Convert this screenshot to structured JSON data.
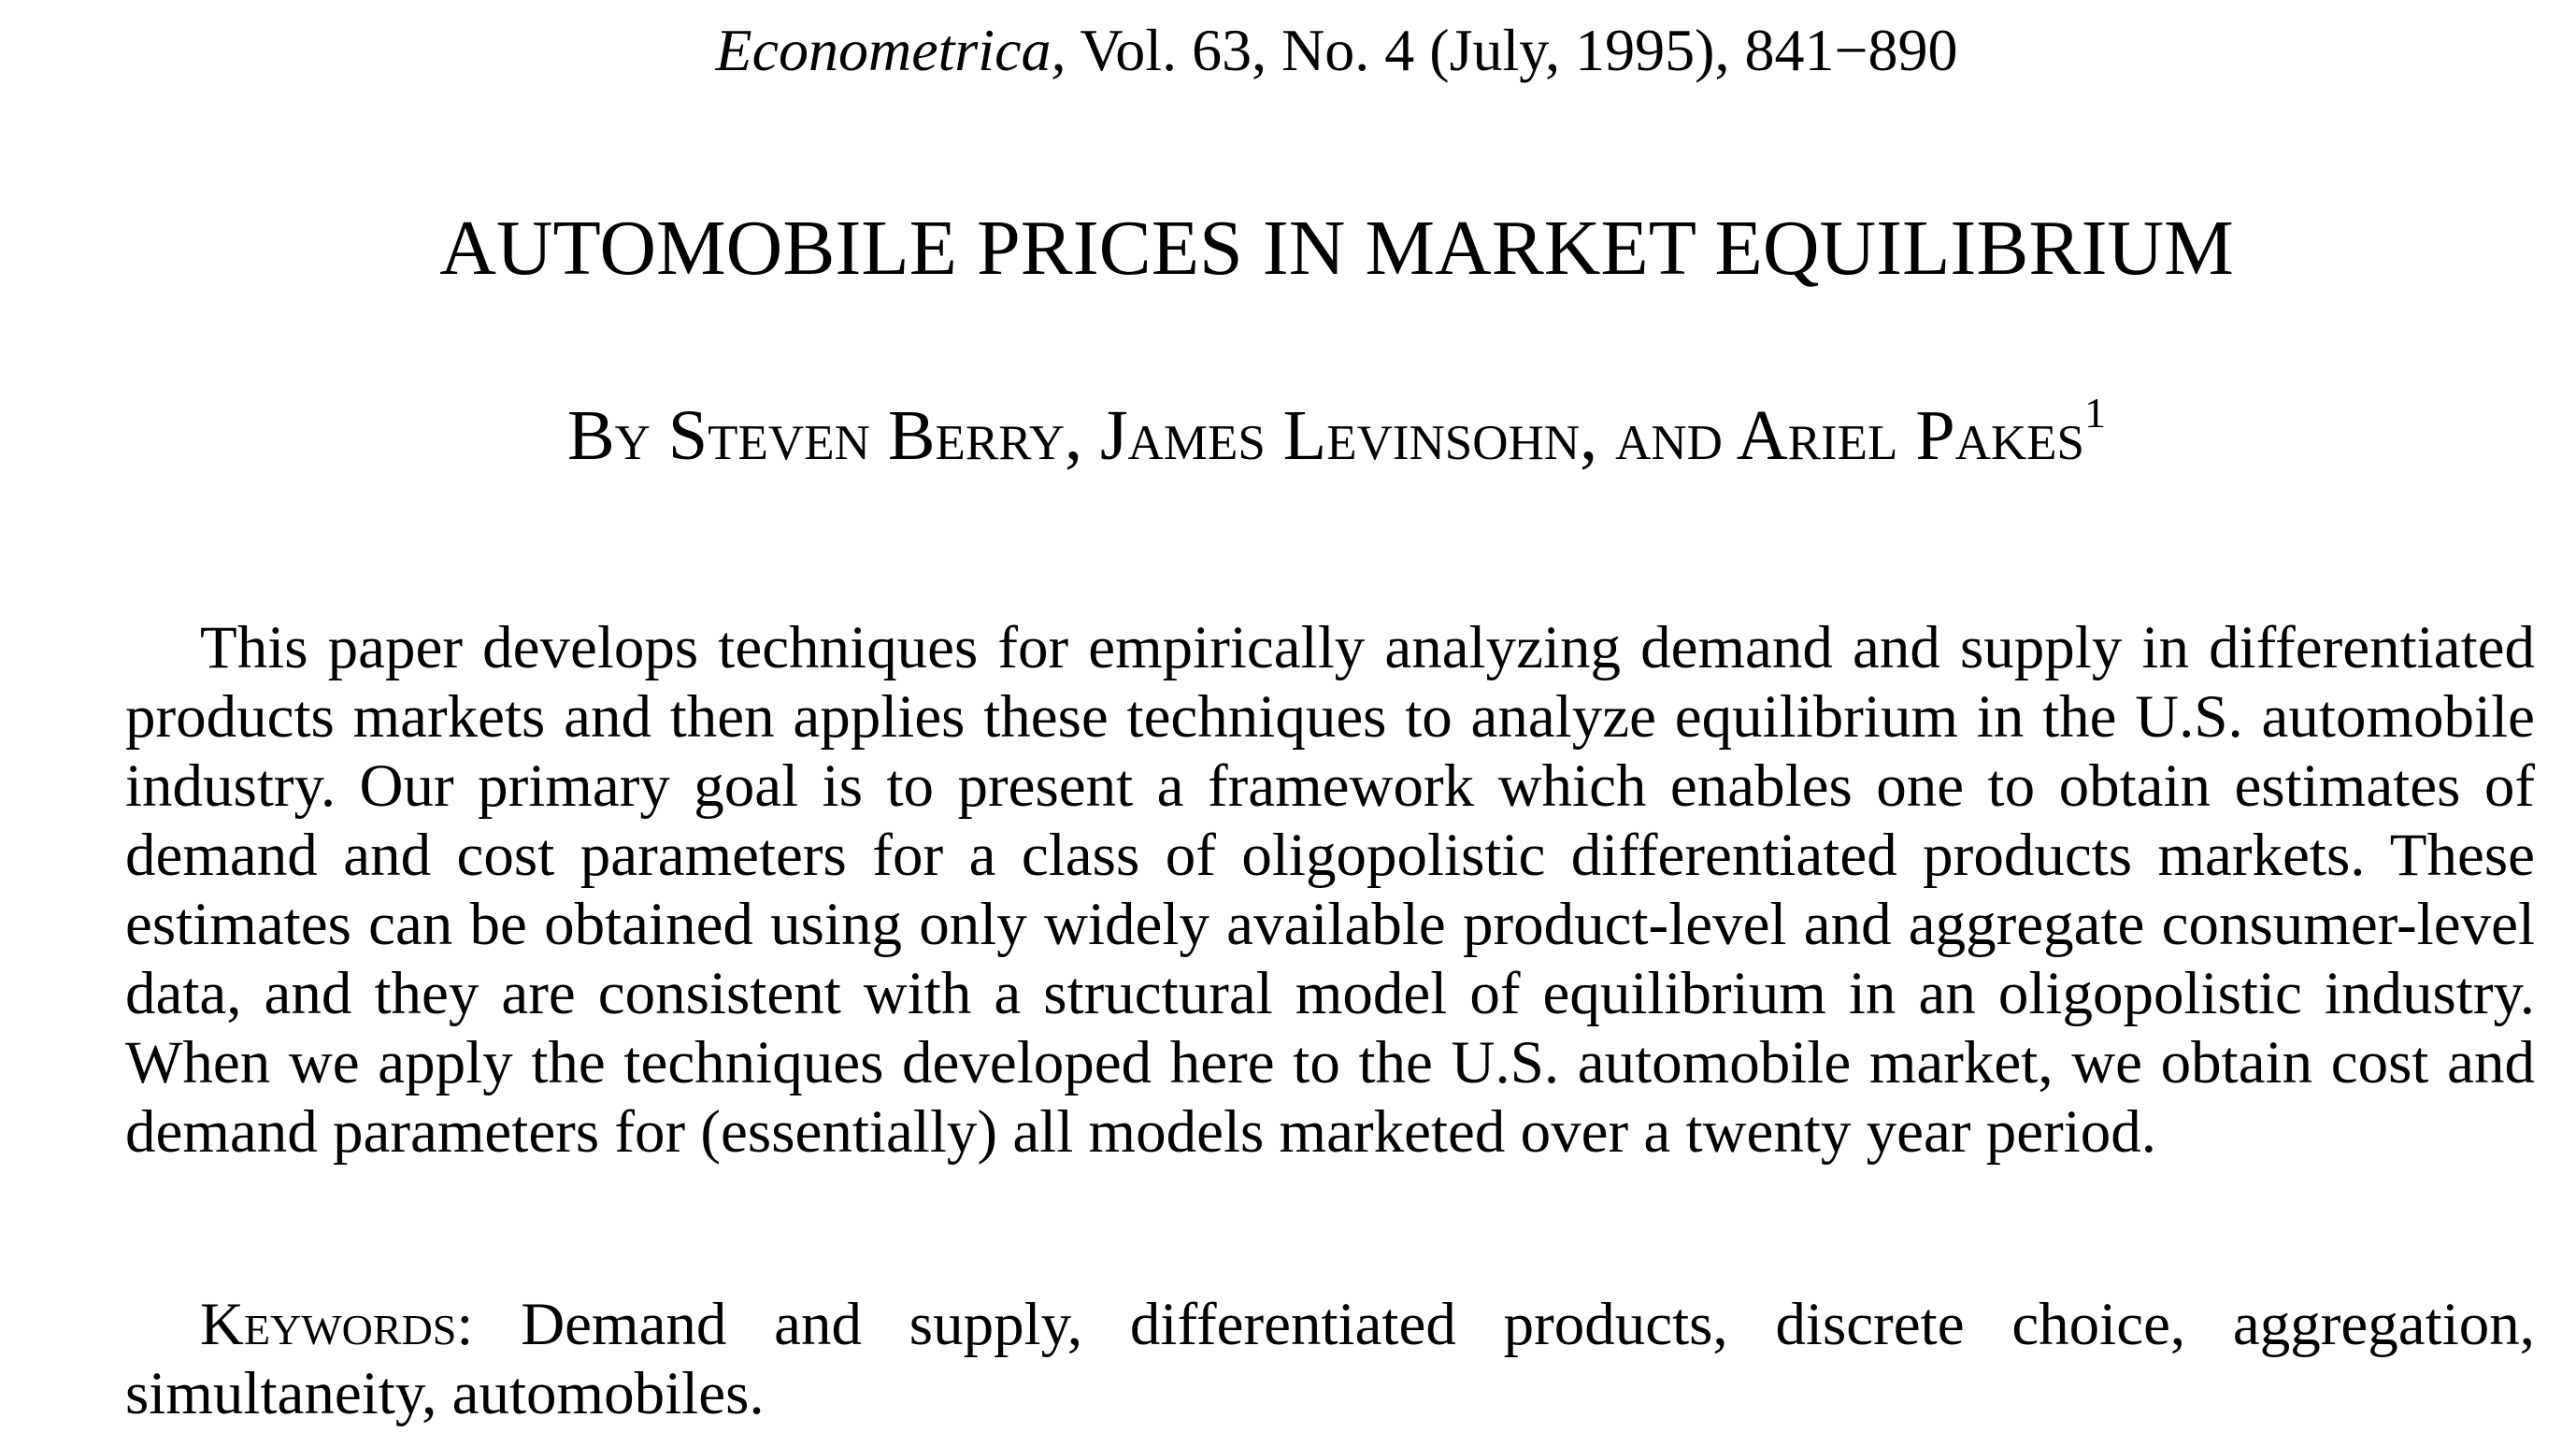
{
  "header": {
    "journal": "Econometrica,",
    "citation": " Vol. 63, No. 4 (July, 1995), 841−890"
  },
  "paper": {
    "title": "AUTOMOBILE PRICES IN MARKET EQUILIBRIUM",
    "authors": "By Steven Berry, James Levinsohn, and Ariel Pakes",
    "author_footnote_mark": "1",
    "abstract": "This paper develops techniques for empirically analyzing demand and supply in differentiated products markets and then applies these techniques to analyze equilibrium in the U.S. automobile industry. Our primary goal is to present a framework which enables one to obtain estimates of demand and cost parameters for a class of oligopolistic differentiated products markets. These estimates can be obtained using only widely available product-level and aggregate consumer-level data, and they are consistent with a structural model of equilibrium in an oligopolistic industry. When we apply the tech­niques developed here to the U.S. automobile market, we obtain cost and demand parameters for (essentially) all models marketed over a twenty year period.",
    "keywords_label": "Keywords:",
    "keywords": " Demand and supply, differentiated products, discrete choice, aggregation, simultaneity, automobiles."
  }
}
